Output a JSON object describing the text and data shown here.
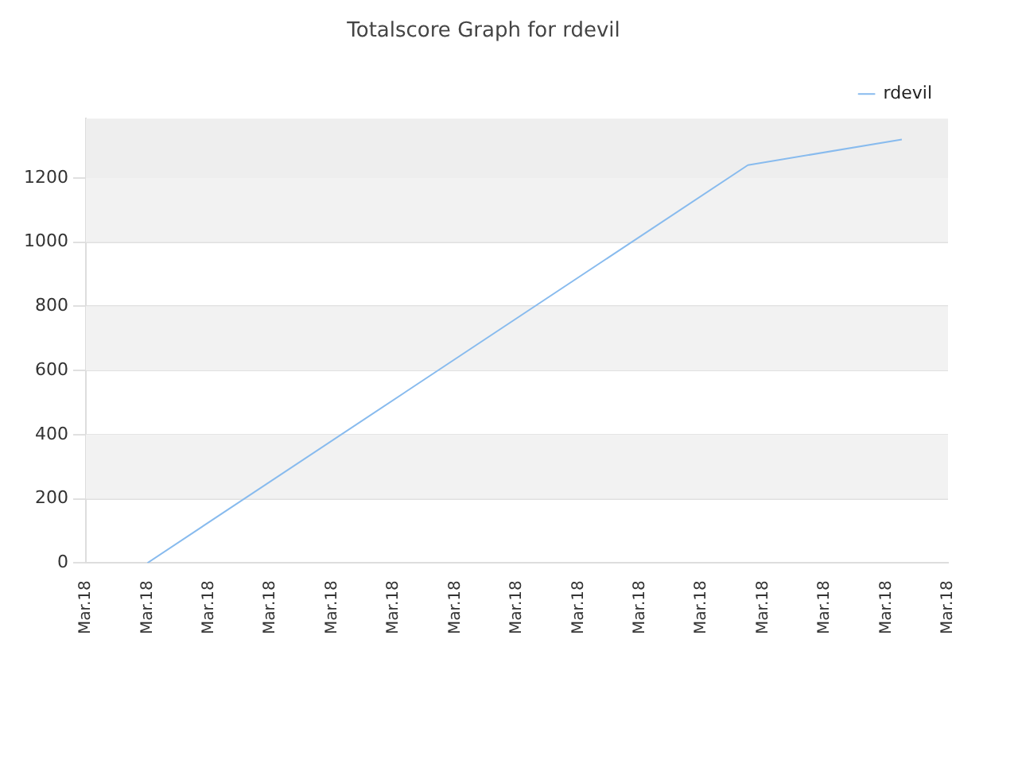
{
  "chart_data": {
    "type": "line",
    "title": "Totalscore Graph for rdevil",
    "categories": [
      "Mar.18",
      null,
      null,
      null,
      "Mar.18",
      null,
      null,
      null,
      "Mar.18",
      null,
      null,
      null,
      "Mar.18",
      null,
      null,
      null,
      "Mar.18",
      null,
      null,
      null,
      "Mar.18",
      null,
      null,
      null,
      "Mar.18",
      null,
      null,
      null,
      "Mar.18",
      null,
      null,
      null,
      "Mar.18",
      null,
      null,
      null,
      "Mar.18",
      null,
      null,
      null,
      "Mar.18",
      null,
      null,
      null,
      "Mar.18",
      null,
      null,
      null,
      "Mar.18",
      null,
      null,
      null,
      "Mar.18",
      null,
      null,
      null,
      "Mar.18"
    ],
    "series": [
      {
        "name": "rdevil",
        "color": "#88bbee",
        "values": [
          null,
          null,
          null,
          null,
          0,
          null,
          null,
          null,
          null,
          null,
          null,
          null,
          null,
          null,
          null,
          null,
          null,
          null,
          null,
          null,
          null,
          null,
          null,
          null,
          null,
          null,
          null,
          null,
          null,
          null,
          null,
          null,
          null,
          null,
          null,
          null,
          null,
          null,
          null,
          null,
          null,
          null,
          null,
          1240,
          null,
          null,
          null,
          null,
          null,
          null,
          null,
          null,
          null,
          1320,
          null,
          null,
          null
        ]
      }
    ],
    "ylim": [
      0,
      1385
    ],
    "yticks": [
      0,
      200,
      400,
      600,
      800,
      1000,
      1200
    ],
    "bands": [
      {
        "axis": "y",
        "from": 200,
        "to": 400,
        "color": "#f2f2f2"
      },
      {
        "axis": "y",
        "from": 600,
        "to": 800,
        "color": "#f2f2f2"
      },
      {
        "axis": "y",
        "from": 1000,
        "to": 1200,
        "color": "#f2f2f2"
      },
      {
        "axis": "y",
        "from": 1200,
        "to": 1385,
        "color": "#eeeeee"
      }
    ],
    "grid": "y",
    "legend": "top right",
    "marker": "none",
    "line_style": "solid"
  }
}
